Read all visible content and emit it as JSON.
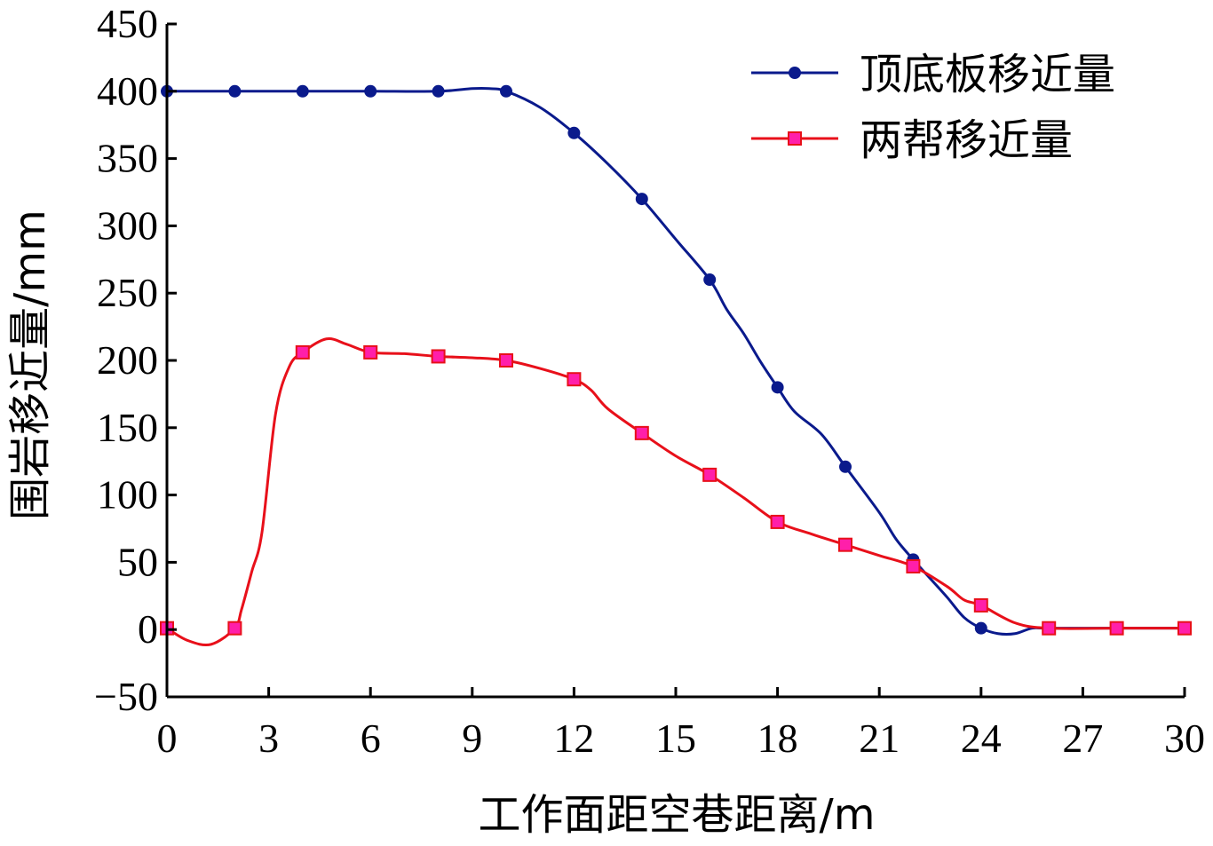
{
  "chart_data": {
    "type": "line",
    "xlabel": "工作面距空巷距离/m",
    "ylabel": "围岩移近量/mm",
    "xlim": [
      0,
      30
    ],
    "ylim": [
      -50,
      450
    ],
    "xticks": [
      0,
      3,
      6,
      9,
      12,
      15,
      18,
      21,
      24,
      27,
      30
    ],
    "yticks": [
      -50,
      0,
      50,
      100,
      150,
      200,
      250,
      300,
      350,
      400,
      450
    ],
    "xtick_labels": [
      "0",
      "3",
      "6",
      "9",
      "12",
      "15",
      "18",
      "21",
      "24",
      "27",
      "30"
    ],
    "ytick_labels": [
      "−50",
      "0",
      "50",
      "100",
      "150",
      "200",
      "250",
      "300",
      "350",
      "400",
      "450"
    ],
    "legend_position": "top-right",
    "grid": false,
    "series": [
      {
        "name": "顶底板移近量",
        "color": "#0a1a8c",
        "marker": "circle",
        "markers": {
          "x": [
            0,
            2,
            4,
            6,
            8,
            10,
            12,
            14,
            16,
            18,
            20,
            22,
            24,
            26,
            28,
            30
          ],
          "y": [
            400,
            400,
            400,
            400,
            400,
            400,
            369,
            320,
            260,
            180,
            121,
            52,
            1,
            1,
            1,
            1
          ]
        },
        "curve": {
          "x": [
            0,
            2,
            4,
            6,
            8,
            9,
            9.5,
            10,
            11,
            12,
            13,
            14,
            15,
            16,
            16.5,
            17,
            17.5,
            18,
            18.5,
            19.3,
            20,
            21,
            21.5,
            22,
            22.5,
            23,
            23.5,
            24,
            24.5,
            25,
            25.5,
            26,
            28,
            30
          ],
          "y": [
            400,
            400,
            400,
            400,
            400,
            402,
            402,
            400,
            388,
            369,
            346,
            320,
            290,
            260,
            238,
            220,
            199,
            180,
            162,
            145,
            121,
            87,
            67,
            52,
            38,
            24,
            9,
            1,
            -3,
            -3,
            1,
            1,
            1,
            1
          ]
        }
      },
      {
        "name": "两帮移近量",
        "color": "#e8101a",
        "marker": "square",
        "marker_fill": "#ff1faa",
        "markers": {
          "x": [
            0,
            2,
            4,
            6,
            8,
            10,
            12,
            14,
            16,
            18,
            20,
            22,
            24,
            26,
            28,
            30
          ],
          "y": [
            1,
            1,
            206,
            206,
            203,
            200,
            186,
            146,
            115,
            80,
            63,
            47,
            18,
            1,
            1,
            1
          ]
        },
        "curve": {
          "x": [
            0,
            0.6,
            1.3,
            2,
            2.2,
            2.5,
            2.8,
            3.2,
            3.6,
            4,
            4.7,
            5.3,
            6,
            7,
            8,
            9,
            10,
            11,
            12,
            12.5,
            13,
            14,
            15,
            16,
            17,
            18,
            19,
            20,
            21,
            22,
            23,
            23.5,
            24,
            25,
            26,
            28,
            30
          ],
          "y": [
            1,
            -8,
            -11,
            1,
            15,
            43,
            72,
            160,
            195,
            206,
            216,
            212,
            206,
            205,
            203,
            202,
            200,
            194,
            186,
            178,
            164,
            146,
            129,
            115,
            98,
            80,
            71,
            63,
            55,
            47,
            32,
            22,
            18,
            5,
            1,
            1,
            1
          ]
        }
      }
    ]
  }
}
